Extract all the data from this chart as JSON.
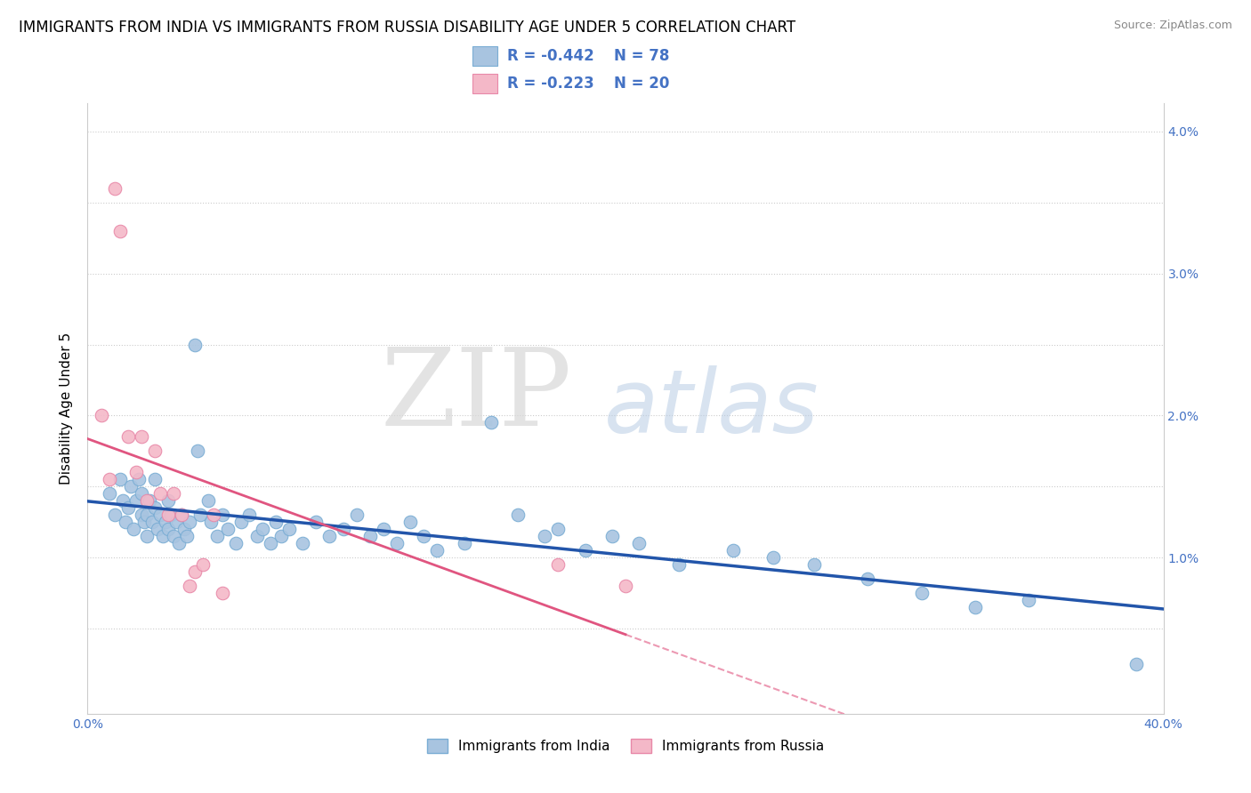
{
  "title": "IMMIGRANTS FROM INDIA VS IMMIGRANTS FROM RUSSIA DISABILITY AGE UNDER 5 CORRELATION CHART",
  "source": "Source: ZipAtlas.com",
  "ylabel": "Disability Age Under 5",
  "xlim": [
    0.0,
    0.4
  ],
  "ylim": [
    -0.001,
    0.042
  ],
  "india_color": "#a8c4e0",
  "india_edge_color": "#7aadd4",
  "russia_color": "#f4b8c8",
  "russia_edge_color": "#e888a8",
  "india_line_color": "#2255aa",
  "russia_line_color": "#e05580",
  "india_R": -0.442,
  "india_N": 78,
  "russia_R": -0.223,
  "russia_N": 20,
  "india_scatter_x": [
    0.008,
    0.01,
    0.012,
    0.013,
    0.014,
    0.015,
    0.016,
    0.017,
    0.018,
    0.019,
    0.02,
    0.02,
    0.021,
    0.022,
    0.022,
    0.023,
    0.024,
    0.025,
    0.025,
    0.026,
    0.027,
    0.028,
    0.029,
    0.03,
    0.03,
    0.031,
    0.032,
    0.033,
    0.034,
    0.035,
    0.036,
    0.037,
    0.038,
    0.04,
    0.041,
    0.042,
    0.045,
    0.046,
    0.048,
    0.05,
    0.052,
    0.055,
    0.057,
    0.06,
    0.063,
    0.065,
    0.068,
    0.07,
    0.072,
    0.075,
    0.08,
    0.085,
    0.09,
    0.095,
    0.1,
    0.105,
    0.11,
    0.115,
    0.12,
    0.125,
    0.13,
    0.14,
    0.15,
    0.16,
    0.17,
    0.175,
    0.185,
    0.195,
    0.205,
    0.22,
    0.24,
    0.255,
    0.27,
    0.29,
    0.31,
    0.33,
    0.35,
    0.39
  ],
  "india_scatter_y": [
    0.0145,
    0.013,
    0.0155,
    0.014,
    0.0125,
    0.0135,
    0.015,
    0.012,
    0.014,
    0.0155,
    0.013,
    0.0145,
    0.0125,
    0.013,
    0.0115,
    0.014,
    0.0125,
    0.0135,
    0.0155,
    0.012,
    0.013,
    0.0115,
    0.0125,
    0.014,
    0.012,
    0.013,
    0.0115,
    0.0125,
    0.011,
    0.013,
    0.012,
    0.0115,
    0.0125,
    0.025,
    0.0175,
    0.013,
    0.014,
    0.0125,
    0.0115,
    0.013,
    0.012,
    0.011,
    0.0125,
    0.013,
    0.0115,
    0.012,
    0.011,
    0.0125,
    0.0115,
    0.012,
    0.011,
    0.0125,
    0.0115,
    0.012,
    0.013,
    0.0115,
    0.012,
    0.011,
    0.0125,
    0.0115,
    0.0105,
    0.011,
    0.0195,
    0.013,
    0.0115,
    0.012,
    0.0105,
    0.0115,
    0.011,
    0.0095,
    0.0105,
    0.01,
    0.0095,
    0.0085,
    0.0075,
    0.0065,
    0.007,
    0.0025
  ],
  "russia_scatter_x": [
    0.005,
    0.008,
    0.01,
    0.012,
    0.015,
    0.018,
    0.02,
    0.022,
    0.025,
    0.027,
    0.03,
    0.032,
    0.035,
    0.038,
    0.04,
    0.043,
    0.047,
    0.05,
    0.175,
    0.2
  ],
  "russia_scatter_y": [
    0.02,
    0.0155,
    0.036,
    0.033,
    0.0185,
    0.016,
    0.0185,
    0.014,
    0.0175,
    0.0145,
    0.013,
    0.0145,
    0.013,
    0.008,
    0.009,
    0.0095,
    0.013,
    0.0075,
    0.0095,
    0.008
  ],
  "watermark_zip": "ZIP",
  "watermark_atlas": "atlas",
  "title_fontsize": 12,
  "axis_label_fontsize": 11,
  "tick_fontsize": 10,
  "legend_fontsize": 12
}
